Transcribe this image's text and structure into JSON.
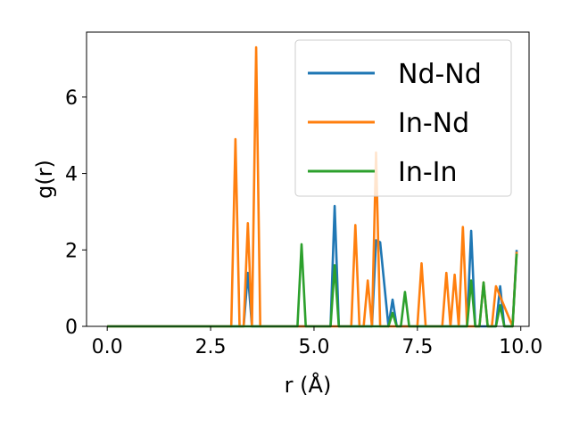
{
  "chart_data": {
    "type": "line",
    "title": "",
    "xlabel": "r (Å)",
    "ylabel": "g(r)",
    "xlim": [
      -0.5,
      10.2
    ],
    "ylim": [
      0,
      7.7
    ],
    "xticks": [
      0.0,
      2.5,
      5.0,
      7.5,
      10.0
    ],
    "xtick_labels": [
      "0.0",
      "2.5",
      "5.0",
      "7.5",
      "10.0"
    ],
    "yticks": [
      0,
      2,
      4,
      6
    ],
    "ytick_labels": [
      "0",
      "2",
      "4",
      "6"
    ],
    "grid": false,
    "legend_position": "top-right",
    "colors": {
      "Nd-Nd": "#1f77b4",
      "In-Nd": "#ff7f0e",
      "In-In": "#2ca02c"
    },
    "series": [
      {
        "name": "Nd-Nd",
        "x": [
          0.0,
          3.3,
          3.4,
          3.5,
          5.4,
          5.5,
          5.6,
          6.4,
          6.5,
          6.6,
          6.8,
          6.9,
          7.0,
          8.7,
          8.8,
          8.9,
          9.4,
          9.5,
          9.6,
          9.8,
          9.9
        ],
        "y": [
          0,
          0,
          1.4,
          0,
          0,
          3.15,
          0,
          0,
          2.25,
          2.2,
          0,
          0.7,
          0,
          0,
          2.5,
          0,
          0,
          1.05,
          0,
          0,
          2.0
        ]
      },
      {
        "name": "In-Nd",
        "x": [
          0.0,
          3.0,
          3.1,
          3.2,
          3.3,
          3.4,
          3.5,
          3.6,
          3.7,
          5.9,
          6.0,
          6.1,
          6.2,
          6.3,
          6.4,
          6.5,
          6.6,
          7.5,
          7.6,
          7.7,
          8.1,
          8.2,
          8.3,
          8.4,
          8.5,
          8.6,
          8.7,
          9.0,
          9.1,
          9.2,
          9.3,
          9.4,
          9.8,
          9.9
        ],
        "y": [
          0,
          0,
          4.9,
          0,
          0,
          2.7,
          0,
          7.3,
          0,
          0,
          2.65,
          0,
          0,
          1.2,
          0,
          4.55,
          0,
          0,
          1.65,
          0,
          0,
          1.4,
          0,
          1.35,
          0,
          2.6,
          0,
          0,
          1.15,
          0,
          0,
          1.05,
          0,
          1.95
        ]
      },
      {
        "name": "In-In",
        "x": [
          0.0,
          4.6,
          4.7,
          4.8,
          5.4,
          5.5,
          5.6,
          6.8,
          6.9,
          7.0,
          7.1,
          7.2,
          7.3,
          8.7,
          8.8,
          8.9,
          9.0,
          9.1,
          9.2,
          9.4,
          9.5,
          9.6,
          9.8,
          9.9
        ],
        "y": [
          0,
          0,
          2.15,
          0,
          0,
          1.6,
          0,
          0,
          0.35,
          0,
          0,
          0.9,
          0,
          0,
          1.2,
          0,
          0,
          1.15,
          0,
          0,
          0.55,
          0,
          0,
          1.9
        ]
      }
    ]
  }
}
